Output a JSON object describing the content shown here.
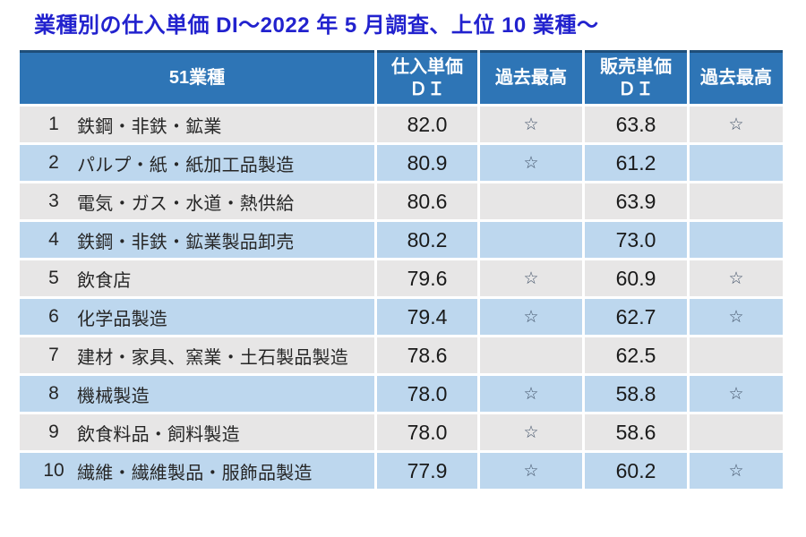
{
  "title": "業種別の仕入単価 DI～2022 年 5 月調査、上位 10 業種～",
  "colors": {
    "title_text": "#2222CE",
    "header_bg": "#2E75B6",
    "header_top_border": "#1F4E79",
    "row_gray": "#E7E6E6",
    "row_blue": "#BDD7EE",
    "star": "#44546A",
    "body_text": "#262626"
  },
  "table": {
    "header": {
      "industry": "51業種",
      "purchase_line1": "仕入単価",
      "purchase_line2": "ＤＩ",
      "purchase_best": "過去最高",
      "sales_line1": "販売単価",
      "sales_line2": "ＤＩ",
      "sales_best": "過去最高"
    },
    "rows": [
      {
        "rank": "1",
        "industry": "鉄鋼・非鉄・鉱業",
        "purchase_di": "82.0",
        "purchase_best": "☆",
        "sales_di": "63.8",
        "sales_best": "☆"
      },
      {
        "rank": "2",
        "industry": "パルプ・紙・紙加工品製造",
        "purchase_di": "80.9",
        "purchase_best": "☆",
        "sales_di": "61.2",
        "sales_best": ""
      },
      {
        "rank": "3",
        "industry": "電気・ガス・水道・熱供給",
        "purchase_di": "80.6",
        "purchase_best": "",
        "sales_di": "63.9",
        "sales_best": ""
      },
      {
        "rank": "4",
        "industry": "鉄鋼・非鉄・鉱業製品卸売",
        "purchase_di": "80.2",
        "purchase_best": "",
        "sales_di": "73.0",
        "sales_best": ""
      },
      {
        "rank": "5",
        "industry": "飲食店",
        "purchase_di": "79.6",
        "purchase_best": "☆",
        "sales_di": "60.9",
        "sales_best": "☆"
      },
      {
        "rank": "6",
        "industry": "化学品製造",
        "purchase_di": "79.4",
        "purchase_best": "☆",
        "sales_di": "62.7",
        "sales_best": "☆"
      },
      {
        "rank": "7",
        "industry": "建材・家具、窯業・土石製品製造",
        "purchase_di": "78.6",
        "purchase_best": "",
        "sales_di": "62.5",
        "sales_best": ""
      },
      {
        "rank": "8",
        "industry": "機械製造",
        "purchase_di": "78.0",
        "purchase_best": "☆",
        "sales_di": "58.8",
        "sales_best": "☆"
      },
      {
        "rank": "9",
        "industry": "飲食料品・飼料製造",
        "purchase_di": "78.0",
        "purchase_best": "☆",
        "sales_di": "58.6",
        "sales_best": ""
      },
      {
        "rank": "10",
        "industry": "繊維・繊維製品・服飾品製造",
        "purchase_di": "77.9",
        "purchase_best": "☆",
        "sales_di": "60.2",
        "sales_best": "☆"
      }
    ]
  },
  "chart_data": {
    "type": "table",
    "title": "業種別の仕入単価DI～2022年5月調査、上位10業種～",
    "columns": [
      "51業種",
      "仕入単価ＤＩ",
      "過去最高",
      "販売単価ＤＩ",
      "過去最高"
    ],
    "record_marker": "☆",
    "rows": [
      {
        "rank": 1,
        "industry": "鉄鋼・非鉄・鉱業",
        "purchase_di": 82.0,
        "purchase_record_high": true,
        "sales_di": 63.8,
        "sales_record_high": true
      },
      {
        "rank": 2,
        "industry": "パルプ・紙・紙加工品製造",
        "purchase_di": 80.9,
        "purchase_record_high": true,
        "sales_di": 61.2,
        "sales_record_high": false
      },
      {
        "rank": 3,
        "industry": "電気・ガス・水道・熱供給",
        "purchase_di": 80.6,
        "purchase_record_high": false,
        "sales_di": 63.9,
        "sales_record_high": false
      },
      {
        "rank": 4,
        "industry": "鉄鋼・非鉄・鉱業製品卸売",
        "purchase_di": 80.2,
        "purchase_record_high": false,
        "sales_di": 73.0,
        "sales_record_high": false
      },
      {
        "rank": 5,
        "industry": "飲食店",
        "purchase_di": 79.6,
        "purchase_record_high": true,
        "sales_di": 60.9,
        "sales_record_high": true
      },
      {
        "rank": 6,
        "industry": "化学品製造",
        "purchase_di": 79.4,
        "purchase_record_high": true,
        "sales_di": 62.7,
        "sales_record_high": true
      },
      {
        "rank": 7,
        "industry": "建材・家具、窯業・土石製品製造",
        "purchase_di": 78.6,
        "purchase_record_high": false,
        "sales_di": 62.5,
        "sales_record_high": false
      },
      {
        "rank": 8,
        "industry": "機械製造",
        "purchase_di": 78.0,
        "purchase_record_high": true,
        "sales_di": 58.8,
        "sales_record_high": true
      },
      {
        "rank": 9,
        "industry": "飲食料品・飼料製造",
        "purchase_di": 78.0,
        "purchase_record_high": true,
        "sales_di": 58.6,
        "sales_record_high": false
      },
      {
        "rank": 10,
        "industry": "繊維・繊維製品・服飾品製造",
        "purchase_di": 77.9,
        "purchase_record_high": true,
        "sales_di": 60.2,
        "sales_record_high": true
      }
    ]
  }
}
